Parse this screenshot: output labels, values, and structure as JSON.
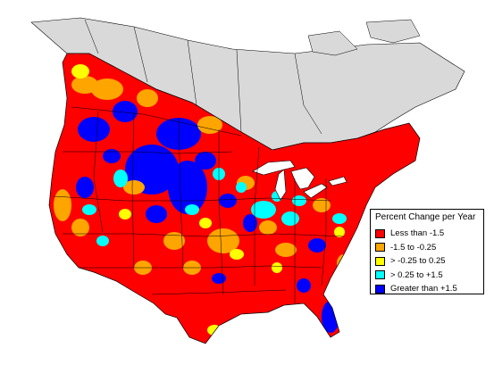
{
  "legend": {
    "title": "Percent Change per Year",
    "items": [
      {
        "label": "Less than -1.5",
        "color": "#ff0000"
      },
      {
        "label": "-1.5 to -0.25",
        "color": "#ffa500"
      },
      {
        "label": "> -0.25 to 0.25",
        "color": "#ffff00"
      },
      {
        "label": "> 0.25 to +1.5",
        "color": "#00ffff"
      },
      {
        "label": "Greater than +1.5",
        "color": "#0000ff"
      }
    ]
  },
  "colors": {
    "no_data": "#d9d9d9",
    "water": "#ffffff",
    "boundary": "#000000"
  }
}
